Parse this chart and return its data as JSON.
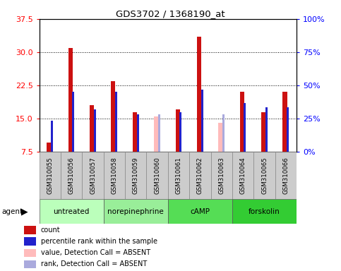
{
  "title": "GDS3702 / 1368190_at",
  "samples": [
    "GSM310055",
    "GSM310056",
    "GSM310057",
    "GSM310058",
    "GSM310059",
    "GSM310060",
    "GSM310061",
    "GSM310062",
    "GSM310063",
    "GSM310064",
    "GSM310065",
    "GSM310066"
  ],
  "red_values": [
    9.5,
    31.0,
    18.0,
    23.5,
    16.5,
    0,
    17.0,
    33.5,
    0,
    21.0,
    16.5,
    21.0
  ],
  "blue_values": [
    14.5,
    21.0,
    17.0,
    21.0,
    16.0,
    0,
    16.5,
    21.5,
    0,
    18.5,
    17.5,
    17.5
  ],
  "pink_values": [
    0,
    0,
    0,
    0,
    0,
    15.5,
    0,
    0,
    14.0,
    0,
    0,
    0
  ],
  "lblue_values": [
    0,
    0,
    0,
    0,
    0,
    16.0,
    0,
    0,
    16.0,
    0,
    0,
    0
  ],
  "absent": [
    false,
    false,
    false,
    false,
    false,
    true,
    false,
    false,
    true,
    false,
    false,
    false
  ],
  "groups": [
    {
      "label": "untreated",
      "start": 0,
      "end": 3,
      "color": "#bbffbb"
    },
    {
      "label": "norepinephrine",
      "start": 3,
      "end": 6,
      "color": "#99ee99"
    },
    {
      "label": "cAMP",
      "start": 6,
      "end": 9,
      "color": "#55dd55"
    },
    {
      "label": "forskolin",
      "start": 9,
      "end": 12,
      "color": "#33cc33"
    }
  ],
  "ylim_left": [
    7.5,
    37.5
  ],
  "ylim_right": [
    0,
    100
  ],
  "yticks_left": [
    7.5,
    15.0,
    22.5,
    30.0,
    37.5
  ],
  "yticks_right": [
    0,
    25,
    50,
    75,
    100
  ],
  "red_color": "#cc1111",
  "blue_color": "#2222cc",
  "pink_color": "#ffbbbb",
  "lblue_color": "#aaaadd",
  "sample_bg": "#cccccc",
  "plot_bg": "#ffffff"
}
